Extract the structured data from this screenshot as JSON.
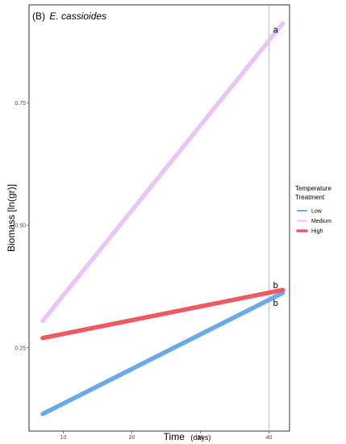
{
  "chart_data": {
    "type": "line",
    "title_prefix": "(B)",
    "title_species": "E. cassioides",
    "xlabel": "Time",
    "xlabel_unit": "(days)",
    "ylabel": "Biomass [ln(gr)]",
    "xlim": [
      5,
      43
    ],
    "ylim": [
      0.08,
      0.95
    ],
    "x_ticks": [
      10,
      20,
      30,
      40
    ],
    "y_ticks": [
      0.25,
      0.5,
      0.75
    ],
    "y_tick_labels": [
      "0.25",
      "0.50",
      "0.75"
    ],
    "grid": false,
    "legend": {
      "title_line1": "Temperature",
      "title_line2": "Treatment",
      "placement": "right"
    },
    "series": [
      {
        "name": "Low",
        "color": "#6aaaea",
        "x": [
          7,
          42
        ],
        "y": [
          0.115,
          0.362
        ]
      },
      {
        "name": "Medium",
        "color": "#e8c6f5",
        "x": [
          7,
          42
        ],
        "y": [
          0.305,
          0.912
        ]
      },
      {
        "name": "High",
        "color": "#ee5a60",
        "x": [
          7,
          42
        ],
        "y": [
          0.27,
          0.368
        ]
      }
    ],
    "vline": {
      "x": 40,
      "color": "#aaaaaa"
    },
    "annotations": [
      {
        "text": "a",
        "x": 40.6,
        "y": 0.9
      },
      {
        "text": "b",
        "x": 40.6,
        "y": 0.378
      },
      {
        "text": "b",
        "x": 40.6,
        "y": 0.342
      }
    ]
  }
}
